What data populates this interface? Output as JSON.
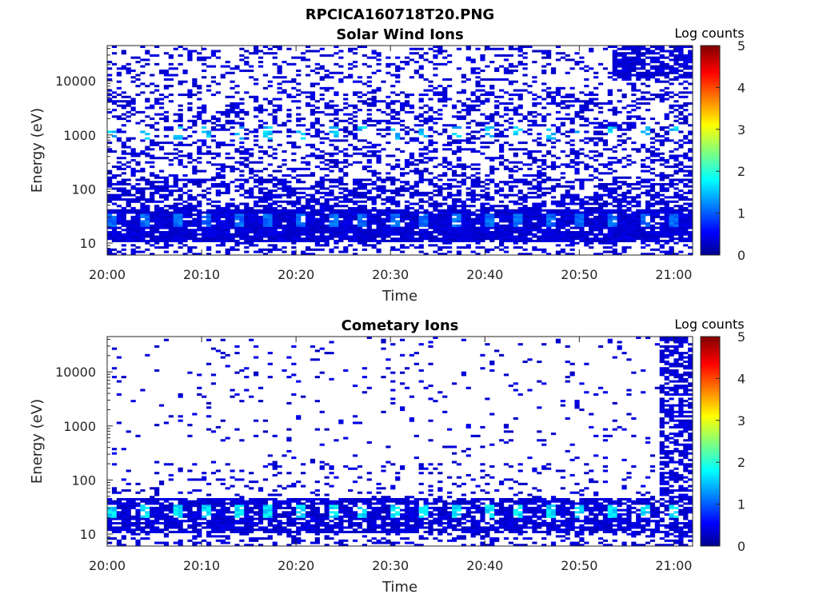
{
  "figure": {
    "title": "RPCICA160718T20.PNG"
  },
  "chart_data": [
    {
      "type": "heatmap",
      "title": "Solar Wind Ions",
      "xlabel": "Time",
      "ylabel": "Energy (eV)",
      "x_range": [
        "20:00",
        "21:02"
      ],
      "x_ticks": [
        "20:00",
        "20:10",
        "20:20",
        "20:30",
        "20:40",
        "20:50",
        "21:00"
      ],
      "y_scale": "log",
      "y_range": [
        6,
        45000
      ],
      "y_ticks": [
        10,
        100,
        1000,
        10000
      ],
      "y_tick_labels": [
        "10",
        "100",
        "1000",
        "10000"
      ],
      "colorbar": {
        "label": "Log counts",
        "range": [
          0,
          5
        ],
        "ticks": [
          "0",
          "1",
          "2",
          "3",
          "4",
          "5"
        ],
        "colormap": "jet"
      },
      "energy_band_peaks": [
        {
          "energy": 1000,
          "log_counts": 1.8
        },
        {
          "energy": 25,
          "log_counts": 1.3
        }
      ],
      "high_energy_activity_after": "20:53"
    },
    {
      "type": "heatmap",
      "title": "Cometary Ions",
      "xlabel": "Time",
      "ylabel": "Energy (eV)",
      "x_range": [
        "20:00",
        "21:02"
      ],
      "x_ticks": [
        "20:00",
        "20:10",
        "20:20",
        "20:30",
        "20:40",
        "20:50",
        "21:00"
      ],
      "y_scale": "log",
      "y_range": [
        6,
        45000
      ],
      "y_ticks": [
        10,
        100,
        1000,
        10000
      ],
      "y_tick_labels": [
        "10",
        "100",
        "1000",
        "10000"
      ],
      "colorbar": {
        "label": "Log counts",
        "range": [
          0,
          5
        ],
        "ticks": [
          "0",
          "1",
          "2",
          "3",
          "4",
          "5"
        ],
        "colormap": "jet"
      },
      "energy_band_peaks": [
        {
          "energy": 25,
          "log_counts": 2.0
        }
      ],
      "high_energy_activity_after": "20:58"
    }
  ]
}
